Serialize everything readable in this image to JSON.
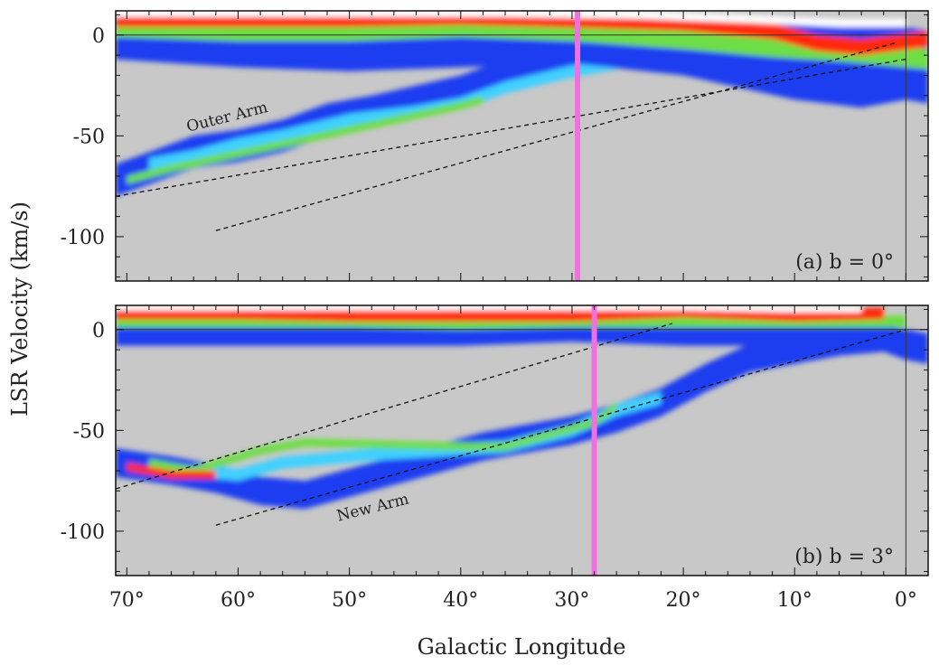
{
  "chart_data": {
    "type": "heatmap",
    "xlabel": "Galactic Longitude",
    "ylabel": "LSR Velocity (km/s)",
    "xlim": [
      71,
      -2
    ],
    "x_direction": "decreasing",
    "x_ticks": [
      70,
      60,
      50,
      40,
      30,
      20,
      10,
      0
    ],
    "x_tick_labels": [
      "70°",
      "60°",
      "50°",
      "40°",
      "30°",
      "20°",
      "10°",
      "0°"
    ],
    "colors": {
      "background": "#c8c8c8",
      "low": "#1f3cf0",
      "mid_low": "#3fd0ff",
      "mid": "#6dde44",
      "mid_high": "#ff7b1a",
      "high": "#ff2a10",
      "saturated": "#ffffff",
      "marker_line": "#f070e0"
    },
    "panels": [
      {
        "id": "a",
        "label": "(a)  b = 0°",
        "latitude": 0,
        "ylim": [
          -122,
          12
        ],
        "y_ticks": [
          0,
          -50,
          -100
        ],
        "y_tick_labels": [
          "0",
          "-50",
          "-100"
        ],
        "zero_line": true,
        "vertical_line_at": 0,
        "marker_line_longitude": 29.5,
        "fit_lines": [
          {
            "from": [
              71,
              -80
            ],
            "to": [
              0,
              -12
            ]
          },
          {
            "from": [
              62,
              -97
            ],
            "to": [
              1,
              -4
            ]
          }
        ],
        "annotations": [
          {
            "text": "Outer Arm",
            "x": 64.5,
            "y": -48,
            "angle": -14
          }
        ],
        "emission_ridges": [
          {
            "level": "low",
            "points": [
              [
                71,
                -72
              ],
              [
                67,
                -64
              ],
              [
                64,
                -58
              ],
              [
                60,
                -55
              ],
              [
                56,
                -50
              ],
              [
                52,
                -42
              ],
              [
                48,
                -38
              ],
              [
                44,
                -33
              ],
              [
                40,
                -28
              ],
              [
                36,
                -20
              ],
              [
                32,
                -14
              ],
              [
                28,
                -10
              ],
              [
                24,
                -6
              ],
              [
                20,
                -4
              ],
              [
                16,
                -3
              ],
              [
                12,
                -2
              ],
              [
                8,
                -1
              ],
              [
                4,
                -2
              ],
              [
                0,
                -4
              ],
              [
                -2,
                -6
              ]
            ],
            "half_width": 8
          },
          {
            "level": "mid_low",
            "points": [
              [
                68,
                -64
              ],
              [
                64,
                -60
              ],
              [
                60,
                -54
              ],
              [
                56,
                -50
              ],
              [
                50,
                -42
              ],
              [
                44,
                -38
              ],
              [
                40,
                -34
              ],
              [
                36,
                -26
              ],
              [
                30,
                -18
              ],
              [
                26,
                -14
              ],
              [
                22,
                -10
              ]
            ],
            "half_width": 3
          },
          {
            "level": "mid",
            "points": [
              [
                70,
                -72
              ],
              [
                66,
                -66
              ],
              [
                40,
                -35
              ],
              [
                38,
                -32
              ]
            ],
            "half_width": 2
          },
          {
            "level": "low",
            "points": [
              [
                71,
                0
              ],
              [
                60,
                -4
              ],
              [
                50,
                -6
              ],
              [
                40,
                -4
              ],
              [
                30,
                -2
              ],
              [
                20,
                -8
              ],
              [
                10,
                -20
              ],
              [
                4,
                -24
              ],
              [
                0,
                -20
              ],
              [
                -2,
                -22
              ]
            ],
            "half_width": 12
          },
          {
            "level": "mid",
            "points": [
              [
                71,
                4
              ],
              [
                60,
                2
              ],
              [
                50,
                2
              ],
              [
                40,
                4
              ],
              [
                30,
                2
              ],
              [
                20,
                -2
              ],
              [
                12,
                -6
              ],
              [
                6,
                -8
              ],
              [
                2,
                -10
              ],
              [
                -2,
                -12
              ]
            ],
            "half_width": 5
          },
          {
            "level": "high",
            "points": [
              [
                71,
                8
              ],
              [
                60,
                8
              ],
              [
                50,
                8
              ],
              [
                40,
                9
              ],
              [
                32,
                8
              ],
              [
                20,
                6
              ],
              [
                12,
                2
              ],
              [
                8,
                -4
              ],
              [
                4,
                -6
              ],
              [
                -2,
                -2
              ]
            ],
            "half_width": 4
          },
          {
            "level": "saturated",
            "points": [
              [
                71,
                11
              ],
              [
                60,
                11
              ],
              [
                48,
                11
              ],
              [
                36,
                11
              ],
              [
                24,
                10
              ],
              [
                14,
                8
              ],
              [
                6,
                6
              ],
              [
                0,
                6
              ]
            ],
            "half_width": 2
          }
        ]
      },
      {
        "id": "b",
        "label": "(b)  b = 3°",
        "latitude": 3,
        "ylim": [
          -122,
          12
        ],
        "y_ticks": [
          0,
          -50,
          -100
        ],
        "y_tick_labels": [
          "0",
          "-50",
          "-100"
        ],
        "zero_line": true,
        "vertical_line_at": 0,
        "marker_line_longitude": 28,
        "fit_lines": [
          {
            "from": [
              71,
              -79
            ],
            "to": [
              21,
              3
            ]
          },
          {
            "from": [
              62,
              -97
            ],
            "to": [
              0,
              0
            ]
          }
        ],
        "annotations": [
          {
            "text": "New Arm",
            "x": 51,
            "y": -95,
            "angle": -14
          }
        ],
        "emission_ridges": [
          {
            "level": "low",
            "points": [
              [
                71,
                -66
              ],
              [
                66,
                -70
              ],
              [
                62,
                -74
              ],
              [
                58,
                -80
              ],
              [
                54,
                -82
              ],
              [
                50,
                -76
              ],
              [
                46,
                -70
              ],
              [
                42,
                -64
              ],
              [
                38,
                -58
              ],
              [
                34,
                -54
              ],
              [
                30,
                -50
              ],
              [
                26,
                -44
              ],
              [
                22,
                -36
              ],
              [
                18,
                -24
              ],
              [
                14,
                -14
              ],
              [
                10,
                -10
              ],
              [
                6,
                -6
              ],
              [
                2,
                -4
              ],
              [
                0,
                -8
              ],
              [
                -2,
                -10
              ]
            ],
            "half_width": 7
          },
          {
            "level": "mid_low",
            "points": [
              [
                64,
                -70
              ],
              [
                60,
                -72
              ],
              [
                56,
                -66
              ],
              [
                48,
                -62
              ],
              [
                42,
                -60
              ],
              [
                36,
                -58
              ],
              [
                30,
                -50
              ],
              [
                26,
                -40
              ],
              [
                22,
                -34
              ]
            ],
            "half_width": 3
          },
          {
            "level": "mid",
            "points": [
              [
                68,
                -66
              ],
              [
                64,
                -70
              ],
              [
                58,
                -60
              ],
              [
                54,
                -56
              ],
              [
                40,
                -58
              ],
              [
                36,
                -58
              ],
              [
                28,
                -46
              ],
              [
                26,
                -38
              ]
            ],
            "half_width": 2
          },
          {
            "level": "high",
            "points": [
              [
                70,
                -68
              ],
              [
                66,
                -72
              ],
              [
                62,
                -72
              ]
            ],
            "half_width": 2
          },
          {
            "level": "low",
            "points": [
              [
                71,
                -2
              ],
              [
                60,
                -2
              ],
              [
                50,
                -2
              ],
              [
                40,
                -2
              ],
              [
                30,
                0
              ],
              [
                20,
                -2
              ],
              [
                10,
                -2
              ],
              [
                2,
                -4
              ],
              [
                -2,
                -8
              ]
            ],
            "half_width": 6
          },
          {
            "level": "mid",
            "points": [
              [
                71,
                4
              ],
              [
                60,
                4
              ],
              [
                50,
                4
              ],
              [
                40,
                3
              ],
              [
                30,
                4
              ],
              [
                20,
                4
              ],
              [
                10,
                4
              ],
              [
                0,
                4
              ]
            ],
            "half_width": 3
          },
          {
            "level": "high",
            "points": [
              [
                71,
                8
              ],
              [
                60,
                8
              ],
              [
                50,
                7
              ],
              [
                40,
                7
              ],
              [
                30,
                7
              ],
              [
                20,
                9
              ],
              [
                10,
                7
              ],
              [
                2,
                8
              ]
            ],
            "half_width": 3
          },
          {
            "level": "saturated",
            "points": [
              [
                71,
                11
              ],
              [
                30,
                11
              ],
              [
                20,
                11
              ],
              [
                10,
                10
              ],
              [
                4,
                10
              ]
            ],
            "half_width": 1.5
          }
        ]
      }
    ]
  }
}
